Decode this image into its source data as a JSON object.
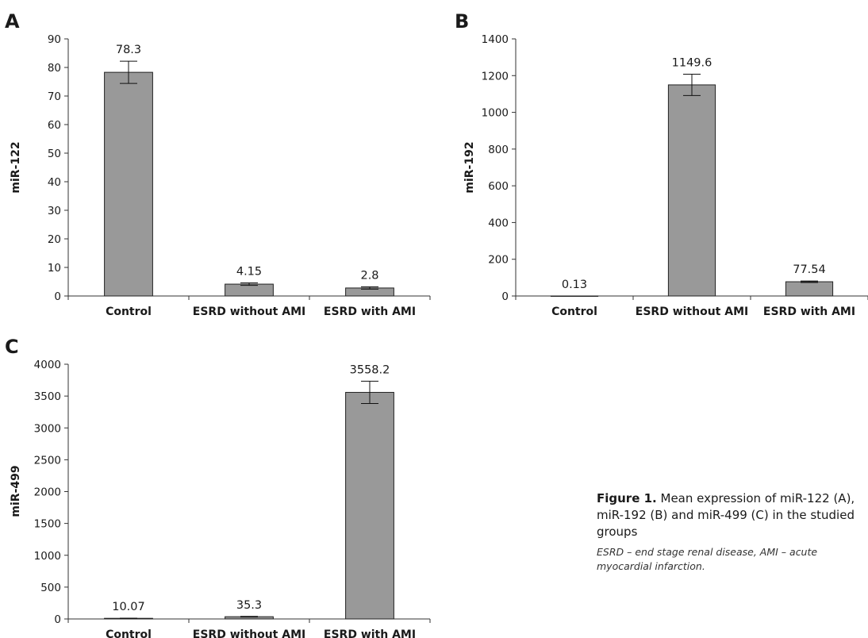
{
  "chart_data": [
    {
      "type": "bar",
      "panel_label": "A",
      "categories": [
        "Control",
        "ESRD without AMI",
        "ESRD with AMI"
      ],
      "values": [
        78.3,
        4.15,
        2.8
      ],
      "value_labels": [
        "78.3",
        "4.15",
        "2.8"
      ],
      "error": [
        3.9,
        0.45,
        0.4
      ],
      "ylabel": "miR-122",
      "ylim": [
        0,
        90
      ],
      "yticks": [
        0,
        10,
        20,
        30,
        40,
        50,
        60,
        70,
        80,
        90
      ],
      "bar_color": "#999999"
    },
    {
      "type": "bar",
      "panel_label": "B",
      "categories": [
        "Control",
        "ESRD without AMI",
        "ESRD with AMI"
      ],
      "values": [
        0.13,
        1149.6,
        77.54
      ],
      "value_labels": [
        "0.13",
        "1149.6",
        "77.54"
      ],
      "error": [
        0,
        58,
        4
      ],
      "ylabel": "miR-192",
      "ylim": [
        0,
        1400
      ],
      "yticks": [
        0,
        200,
        400,
        600,
        800,
        1000,
        1200,
        1400
      ],
      "bar_color": "#999999"
    },
    {
      "type": "bar",
      "panel_label": "C",
      "categories": [
        "Control",
        "ESRD without AMI",
        "ESRD with AMI"
      ],
      "values": [
        10.07,
        35.3,
        3558.2
      ],
      "value_labels": [
        "10.07",
        "35.3",
        "3558.2"
      ],
      "error": [
        2,
        5,
        175
      ],
      "ylabel": "miR-499",
      "ylim": [
        0,
        4000
      ],
      "yticks": [
        0,
        500,
        1000,
        1500,
        2000,
        2500,
        3000,
        3500,
        4000
      ],
      "bar_color": "#999999"
    }
  ],
  "caption": {
    "label": "Figure 1.",
    "text": " Mean expression of miR-122 (A), miR-192 (B) and miR-499 (C) in the studied groups",
    "note": "ESRD – end stage renal disease, AMI – acute myocardial infarction."
  }
}
